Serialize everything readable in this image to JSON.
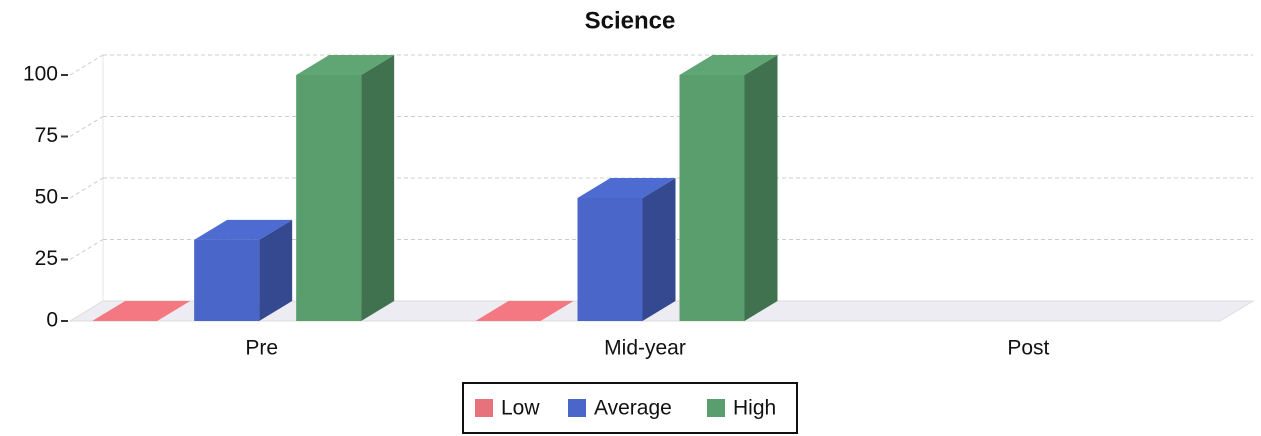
{
  "chart_data": {
    "type": "bar",
    "title": "Science",
    "categories": [
      "Pre",
      "Mid-year",
      "Post"
    ],
    "series": [
      {
        "name": "Low",
        "color": "#e8727c",
        "values": [
          0,
          0,
          null
        ]
      },
      {
        "name": "Average",
        "color": "#4a66c8",
        "values": [
          33,
          50,
          null
        ]
      },
      {
        "name": "High",
        "color": "#5a9e6e",
        "values": [
          100,
          100,
          null
        ]
      }
    ],
    "ylim": [
      0,
      100
    ],
    "yticks": [
      0,
      25,
      50,
      75,
      100
    ],
    "grid": true,
    "legend": "bottom"
  }
}
